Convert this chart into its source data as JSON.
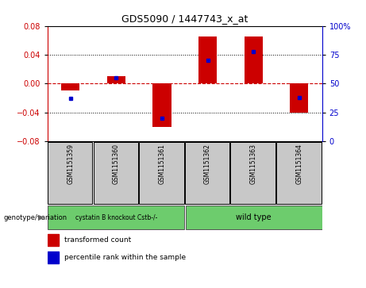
{
  "title": "GDS5090 / 1447743_x_at",
  "samples": [
    "GSM1151359",
    "GSM1151360",
    "GSM1151361",
    "GSM1151362",
    "GSM1151363",
    "GSM1151364"
  ],
  "red_bars": [
    -0.01,
    0.01,
    -0.06,
    0.065,
    0.065,
    -0.04
  ],
  "blue_percentiles": [
    37,
    55,
    20,
    70,
    78,
    38
  ],
  "ylim_left": [
    -0.08,
    0.08
  ],
  "ylim_right": [
    0,
    100
  ],
  "yticks_left": [
    -0.08,
    -0.04,
    0,
    0.04,
    0.08
  ],
  "yticks_right": [
    0,
    25,
    50,
    75,
    100
  ],
  "ytick_labels_right": [
    "0",
    "25",
    "50",
    "75",
    "100%"
  ],
  "groups": [
    {
      "label": "cystatin B knockout Cstb-/-",
      "span": [
        0,
        2
      ]
    },
    {
      "label": "wild type",
      "span": [
        3,
        5
      ]
    }
  ],
  "group_row_color": "#6DCC6D",
  "sample_box_color": "#C8C8C8",
  "bar_color": "#CC0000",
  "marker_color": "#0000CC",
  "zero_line_color": "#CC0000",
  "grid_color": "#000000",
  "left_axis_color": "#CC0000",
  "right_axis_color": "#0000CC",
  "legend_red_label": "transformed count",
  "legend_blue_label": "percentile rank within the sample",
  "genotype_label": "genotype/variation"
}
